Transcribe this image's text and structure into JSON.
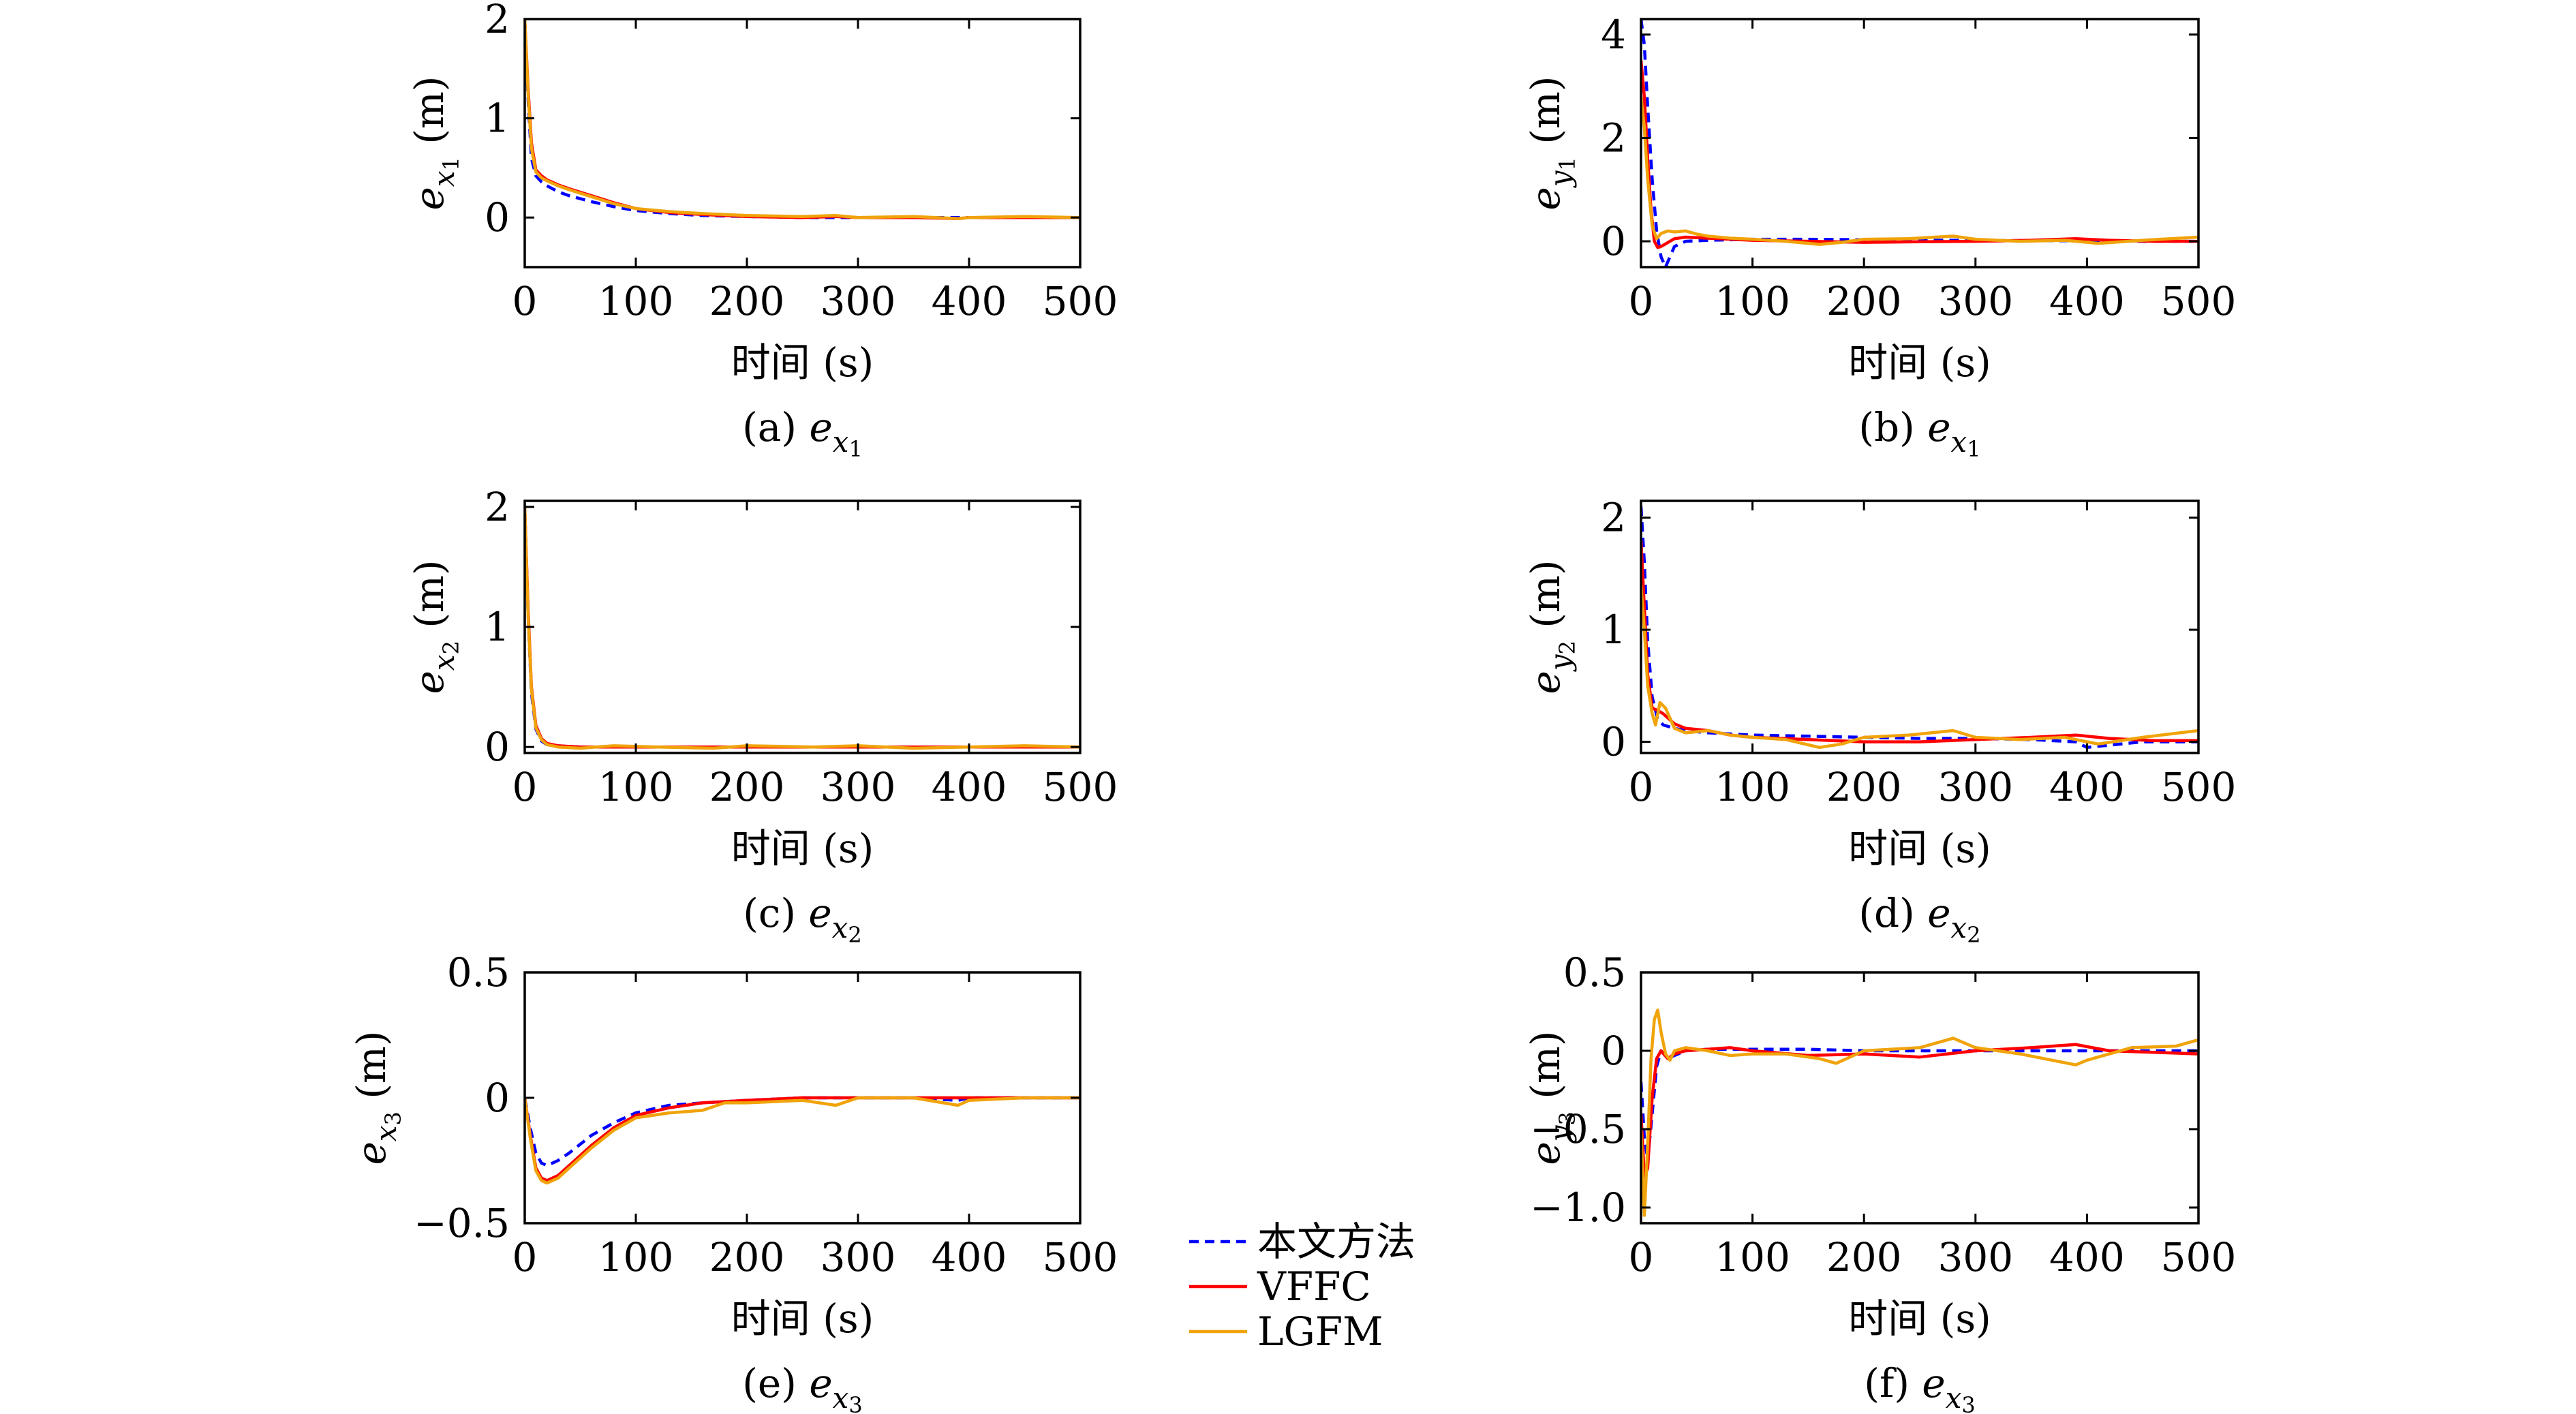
{
  "figure": {
    "legend": [
      {
        "label": "本文方法",
        "color": "#0000ff",
        "dash": "dashed"
      },
      {
        "label": "VFFC",
        "color": "#ff0000",
        "dash": "solid"
      },
      {
        "label": "LGFM",
        "color": "#f0a30a",
        "dash": "solid"
      }
    ]
  },
  "chart_data": [
    {
      "type": "line",
      "caption": "(a) e_{x1}",
      "ylabel": "e_{x1} (m)",
      "xlabel": "时间 (s)",
      "xlim": [
        0,
        500
      ],
      "ylim": [
        -0.5,
        2
      ],
      "xticks": [
        0,
        100,
        200,
        300,
        400,
        500
      ],
      "yticks": [
        0,
        1,
        2
      ],
      "grid": false,
      "series": [
        {
          "name": "本文方法",
          "color": "#0000ff",
          "dash": "dashed",
          "x": [
            0,
            3,
            6,
            10,
            15,
            20,
            30,
            40,
            60,
            80,
            100,
            130,
            160,
            200,
            250,
            300,
            350,
            400,
            450,
            500
          ],
          "y": [
            2.0,
            1.2,
            0.6,
            0.42,
            0.36,
            0.32,
            0.26,
            0.22,
            0.16,
            0.11,
            0.07,
            0.04,
            0.02,
            0.01,
            0.0,
            0.0,
            0.0,
            0.0,
            0.0,
            0.0
          ]
        },
        {
          "name": "VFFC",
          "color": "#ff0000",
          "dash": "solid",
          "x": [
            0,
            3,
            6,
            10,
            15,
            20,
            30,
            40,
            60,
            80,
            100,
            130,
            160,
            200,
            250,
            280,
            300,
            350,
            390,
            400,
            450,
            500
          ],
          "y": [
            2.0,
            1.3,
            0.75,
            0.48,
            0.42,
            0.38,
            0.33,
            0.29,
            0.22,
            0.15,
            0.09,
            0.05,
            0.03,
            0.01,
            0.0,
            0.01,
            0.0,
            0.0,
            -0.01,
            0.0,
            0.0,
            0.0
          ]
        },
        {
          "name": "LGFM",
          "color": "#f0a30a",
          "dash": "solid",
          "x": [
            0,
            3,
            6,
            10,
            15,
            20,
            30,
            40,
            60,
            80,
            100,
            130,
            160,
            200,
            250,
            280,
            300,
            350,
            390,
            400,
            450,
            500
          ],
          "y": [
            2.0,
            1.25,
            0.7,
            0.46,
            0.4,
            0.37,
            0.32,
            0.28,
            0.21,
            0.14,
            0.09,
            0.06,
            0.04,
            0.02,
            0.01,
            0.02,
            0.0,
            0.01,
            -0.01,
            0.0,
            0.01,
            0.0
          ]
        }
      ]
    },
    {
      "type": "line",
      "caption": "(b) e_{x1}",
      "ylabel": "e_{y1} (m)",
      "xlabel": "时间 (s)",
      "xlim": [
        0,
        500
      ],
      "ylim": [
        -0.5,
        4.3
      ],
      "xticks": [
        0,
        100,
        200,
        300,
        400,
        500
      ],
      "yticks": [
        0,
        2,
        4
      ],
      "grid": false,
      "series": [
        {
          "name": "本文方法",
          "color": "#0000ff",
          "dash": "dashed",
          "x": [
            0,
            3,
            6,
            10,
            14,
            18,
            22,
            26,
            30,
            40,
            60,
            100,
            150,
            200,
            250,
            300,
            350,
            400,
            450,
            500
          ],
          "y": [
            4.3,
            3.8,
            2.6,
            1.2,
            0.2,
            -0.3,
            -0.5,
            -0.3,
            -0.1,
            0.0,
            0.02,
            0.04,
            0.04,
            0.03,
            0.02,
            0.02,
            0.01,
            0.01,
            0.0,
            0.0
          ]
        },
        {
          "name": "VFFC",
          "color": "#ff0000",
          "dash": "solid",
          "x": [
            0,
            3,
            6,
            9,
            12,
            15,
            18,
            22,
            26,
            30,
            40,
            60,
            100,
            150,
            200,
            250,
            300,
            350,
            390,
            420,
            460,
            500
          ],
          "y": [
            3.5,
            2.8,
            1.6,
            0.6,
            0.0,
            -0.12,
            -0.1,
            -0.05,
            0.0,
            0.05,
            0.08,
            0.06,
            0.02,
            0.0,
            -0.02,
            -0.01,
            0.0,
            0.02,
            0.05,
            0.02,
            0.0,
            0.0
          ]
        },
        {
          "name": "LGFM",
          "color": "#f0a30a",
          "dash": "solid",
          "x": [
            0,
            3,
            6,
            10,
            14,
            18,
            24,
            30,
            40,
            50,
            60,
            80,
            100,
            130,
            160,
            180,
            200,
            240,
            280,
            300,
            340,
            380,
            410,
            450,
            500
          ],
          "y": [
            2.8,
            2.2,
            1.2,
            0.3,
            0.05,
            0.15,
            0.2,
            0.18,
            0.2,
            0.14,
            0.1,
            0.06,
            0.04,
            0.0,
            -0.06,
            -0.02,
            0.04,
            0.05,
            0.1,
            0.04,
            0.0,
            0.02,
            -0.04,
            0.02,
            0.08
          ]
        }
      ]
    },
    {
      "type": "line",
      "caption": "(c) e_{x2}",
      "ylabel": "e_{x2} (m)",
      "xlabel": "时间 (s)",
      "xlim": [
        0,
        500
      ],
      "ylim": [
        -0.05,
        2.05
      ],
      "xticks": [
        0,
        100,
        200,
        300,
        400,
        500
      ],
      "yticks": [
        0,
        1,
        2
      ],
      "grid": false,
      "series": [
        {
          "name": "本文方法",
          "color": "#0000ff",
          "dash": "dashed",
          "x": [
            0,
            3,
            6,
            10,
            15,
            20,
            30,
            50,
            100,
            200,
            300,
            400,
            500
          ],
          "y": [
            2.0,
            1.1,
            0.45,
            0.15,
            0.05,
            0.02,
            0.01,
            0.0,
            0.0,
            0.0,
            0.0,
            0.0,
            0.0
          ]
        },
        {
          "name": "VFFC",
          "color": "#ff0000",
          "dash": "solid",
          "x": [
            0,
            3,
            6,
            10,
            15,
            20,
            30,
            50,
            100,
            200,
            300,
            400,
            500
          ],
          "y": [
            2.0,
            1.15,
            0.5,
            0.18,
            0.07,
            0.03,
            0.01,
            0.0,
            0.0,
            0.0,
            0.0,
            0.0,
            0.0
          ]
        },
        {
          "name": "LGFM",
          "color": "#f0a30a",
          "dash": "solid",
          "x": [
            0,
            3,
            6,
            10,
            15,
            20,
            30,
            50,
            80,
            120,
            170,
            200,
            260,
            300,
            350,
            400,
            450,
            500
          ],
          "y": [
            2.0,
            1.1,
            0.48,
            0.16,
            0.06,
            0.02,
            0.0,
            -0.01,
            0.01,
            0.0,
            -0.01,
            0.01,
            0.0,
            0.01,
            -0.01,
            0.0,
            0.01,
            0.0
          ]
        }
      ]
    },
    {
      "type": "line",
      "caption": "(d) e_{x2}",
      "ylabel": "e_{y2} (m)",
      "xlabel": "时间 (s)",
      "xlim": [
        0,
        500
      ],
      "ylim": [
        -0.1,
        2.15
      ],
      "xticks": [
        0,
        100,
        200,
        300,
        400,
        500
      ],
      "yticks": [
        0,
        1,
        2
      ],
      "grid": false,
      "series": [
        {
          "name": "本文方法",
          "color": "#0000ff",
          "dash": "dashed",
          "x": [
            0,
            3,
            6,
            10,
            15,
            20,
            30,
            40,
            60,
            100,
            150,
            200,
            250,
            300,
            350,
            390,
            400,
            450,
            500
          ],
          "y": [
            2.1,
            1.6,
            0.9,
            0.4,
            0.2,
            0.15,
            0.12,
            0.1,
            0.08,
            0.06,
            0.05,
            0.04,
            0.03,
            0.03,
            0.02,
            0.0,
            -0.05,
            0.0,
            0.0
          ]
        },
        {
          "name": "VFFC",
          "color": "#ff0000",
          "dash": "solid",
          "x": [
            0,
            3,
            6,
            10,
            15,
            20,
            30,
            40,
            60,
            80,
            100,
            150,
            200,
            250,
            300,
            350,
            390,
            420,
            460,
            500
          ],
          "y": [
            1.8,
            1.2,
            0.6,
            0.3,
            0.28,
            0.25,
            0.16,
            0.12,
            0.1,
            0.06,
            0.04,
            0.02,
            0.0,
            0.0,
            0.02,
            0.04,
            0.06,
            0.03,
            0.01,
            0.01
          ]
        },
        {
          "name": "LGFM",
          "color": "#f0a30a",
          "dash": "solid",
          "x": [
            0,
            3,
            6,
            10,
            13,
            17,
            22,
            30,
            40,
            60,
            80,
            100,
            130,
            160,
            180,
            200,
            240,
            280,
            300,
            340,
            380,
            410,
            450,
            500
          ],
          "y": [
            1.4,
            1.0,
            0.5,
            0.25,
            0.15,
            0.35,
            0.3,
            0.12,
            0.08,
            0.1,
            0.06,
            0.04,
            0.02,
            -0.05,
            -0.02,
            0.04,
            0.06,
            0.1,
            0.04,
            0.02,
            0.04,
            -0.02,
            0.04,
            0.1
          ]
        }
      ]
    },
    {
      "type": "line",
      "caption": "(e) e_{x3}",
      "ylabel": "e_{x3} (m)",
      "xlabel": "时间 (s)",
      "xlim": [
        0,
        500
      ],
      "ylim": [
        -0.5,
        0.5
      ],
      "xticks": [
        0,
        100,
        200,
        300,
        400,
        500
      ],
      "yticks": [
        -0.5,
        0,
        0.5
      ],
      "yticklabels": [
        "−0.5",
        "0",
        "0.5"
      ],
      "grid": false,
      "series": [
        {
          "name": "本文方法",
          "color": "#0000ff",
          "dash": "dashed",
          "x": [
            0,
            5,
            10,
            15,
            20,
            30,
            40,
            60,
            80,
            100,
            130,
            160,
            200,
            250,
            300,
            350,
            390,
            400,
            450,
            500
          ],
          "y": [
            0.0,
            -0.12,
            -0.22,
            -0.26,
            -0.27,
            -0.25,
            -0.22,
            -0.15,
            -0.1,
            -0.06,
            -0.03,
            -0.02,
            -0.01,
            0.0,
            0.0,
            0.0,
            -0.01,
            0.0,
            0.0,
            0.0
          ]
        },
        {
          "name": "VFFC",
          "color": "#ff0000",
          "dash": "solid",
          "x": [
            0,
            5,
            10,
            15,
            20,
            30,
            40,
            60,
            80,
            100,
            130,
            160,
            200,
            250,
            300,
            350,
            400,
            450,
            500
          ],
          "y": [
            0.0,
            -0.15,
            -0.28,
            -0.32,
            -0.33,
            -0.31,
            -0.27,
            -0.19,
            -0.12,
            -0.07,
            -0.04,
            -0.02,
            -0.01,
            0.0,
            0.0,
            0.0,
            0.0,
            0.0,
            0.0
          ]
        },
        {
          "name": "LGFM",
          "color": "#f0a30a",
          "dash": "solid",
          "x": [
            0,
            5,
            10,
            15,
            20,
            30,
            40,
            60,
            80,
            100,
            130,
            160,
            180,
            200,
            250,
            280,
            300,
            350,
            390,
            400,
            450,
            500
          ],
          "y": [
            0.0,
            -0.16,
            -0.29,
            -0.33,
            -0.34,
            -0.32,
            -0.28,
            -0.2,
            -0.13,
            -0.08,
            -0.06,
            -0.05,
            -0.02,
            -0.02,
            -0.01,
            -0.03,
            0.0,
            0.0,
            -0.03,
            -0.01,
            0.0,
            0.0
          ]
        }
      ]
    },
    {
      "type": "line",
      "caption": "(f) e_{x3}",
      "ylabel": "e_{y3} (m)",
      "xlabel": "时间 (s)",
      "xlim": [
        0,
        500
      ],
      "ylim": [
        -1.1,
        0.5
      ],
      "xticks": [
        0,
        100,
        200,
        300,
        400,
        500
      ],
      "yticks": [
        -1.0,
        -0.5,
        0,
        0.5
      ],
      "yticklabels": [
        "−1.0",
        "−0.5",
        "0",
        "0.5"
      ],
      "grid": false,
      "series": [
        {
          "name": "本文方法",
          "color": "#0000ff",
          "dash": "dashed",
          "x": [
            0,
            3,
            6,
            10,
            14,
            18,
            24,
            30,
            40,
            60,
            100,
            150,
            200,
            300,
            400,
            500
          ],
          "y": [
            -0.2,
            -0.55,
            -0.7,
            -0.4,
            -0.1,
            0.0,
            -0.05,
            -0.03,
            0.0,
            0.01,
            0.01,
            0.01,
            0.0,
            0.0,
            0.0,
            0.0
          ]
        },
        {
          "name": "VFFC",
          "color": "#ff0000",
          "dash": "solid",
          "x": [
            0,
            3,
            6,
            10,
            14,
            18,
            24,
            30,
            40,
            60,
            80,
            100,
            150,
            200,
            250,
            300,
            350,
            390,
            420,
            460,
            500
          ],
          "y": [
            -0.4,
            -0.8,
            -0.75,
            -0.3,
            -0.05,
            0.0,
            -0.05,
            -0.02,
            0.0,
            0.01,
            0.02,
            0.0,
            -0.03,
            -0.02,
            -0.04,
            0.0,
            0.02,
            0.04,
            0.0,
            -0.01,
            -0.02
          ]
        },
        {
          "name": "LGFM",
          "color": "#f0a30a",
          "dash": "solid",
          "x": [
            0,
            3,
            6,
            9,
            12,
            15,
            18,
            22,
            26,
            30,
            40,
            60,
            80,
            100,
            130,
            160,
            175,
            200,
            250,
            280,
            300,
            340,
            390,
            400,
            440,
            480,
            500
          ],
          "y": [
            -0.5,
            -1.05,
            -0.6,
            -0.05,
            0.2,
            0.26,
            0.12,
            -0.02,
            -0.06,
            0.0,
            0.02,
            0.0,
            -0.03,
            -0.02,
            -0.02,
            -0.05,
            -0.08,
            0.0,
            0.02,
            0.08,
            0.02,
            -0.02,
            -0.09,
            -0.06,
            0.02,
            0.03,
            0.07
          ]
        }
      ]
    }
  ]
}
